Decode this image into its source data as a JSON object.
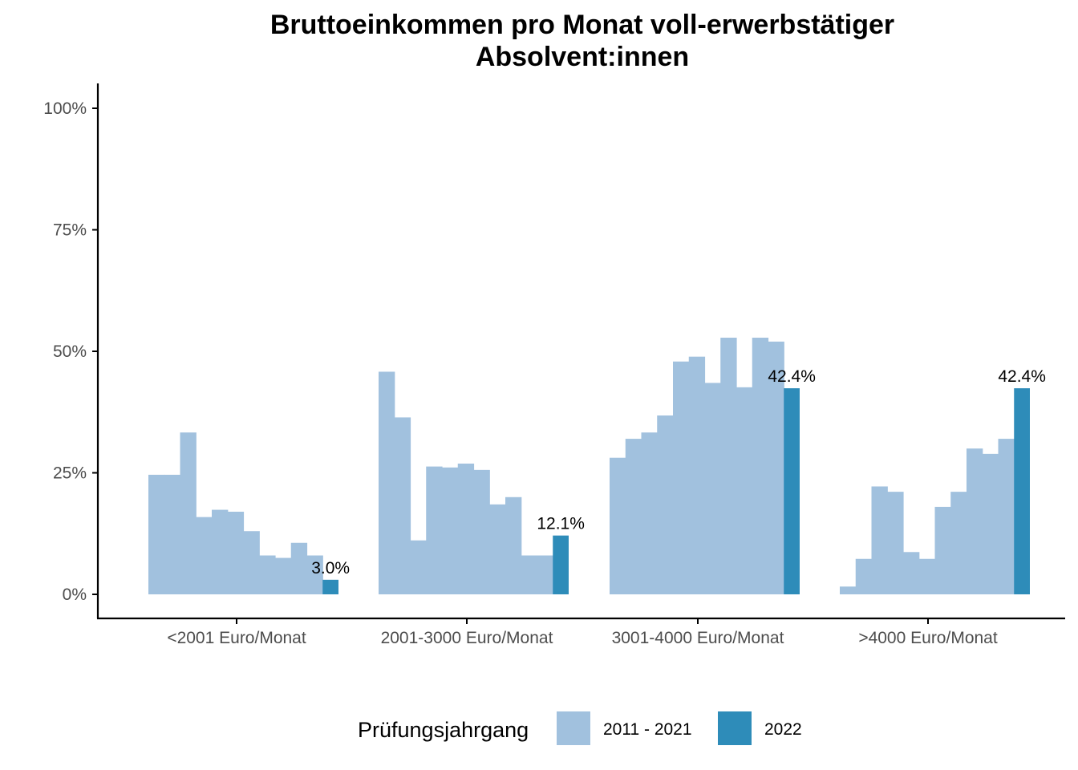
{
  "chart_data": {
    "type": "bar",
    "title_lines": [
      "Bruttoeinkommen pro Monat voll-erwerbstätiger",
      "Absolvent:innen"
    ],
    "xlabel": "",
    "ylabel": "",
    "ylim": [
      0,
      100
    ],
    "yticks": [
      "0%",
      "25%",
      "50%",
      "75%",
      "100%"
    ],
    "ytick_values": [
      0,
      25,
      50,
      75,
      100
    ],
    "categories": [
      "<2001 Euro/Monat",
      "2001-3000 Euro/Monat",
      "3001-4000 Euro/Monat",
      ">4000 Euro/Monat"
    ],
    "series": [
      {
        "name": "2011 - 2021",
        "color": "#a1c1de",
        "values_per_category": [
          [
            24.6,
            24.6,
            33.3,
            15.9,
            17.4,
            17.0,
            13.0,
            8.0,
            7.5,
            10.6,
            8.0
          ],
          [
            45.8,
            36.4,
            11.1,
            26.3,
            26.1,
            26.9,
            25.6,
            18.5,
            20.0,
            8.0,
            8.0
          ],
          [
            28.1,
            32.0,
            33.3,
            36.8,
            47.9,
            48.9,
            43.5,
            52.8,
            42.6,
            52.8,
            52.0
          ],
          [
            1.6,
            7.3,
            22.2,
            21.1,
            8.7,
            7.3,
            18.0,
            21.1,
            30.0,
            28.9,
            32.0
          ]
        ]
      },
      {
        "name": "2022",
        "color": "#2e8cb9",
        "values": [
          3.0,
          12.1,
          42.4,
          42.4
        ],
        "data_labels": [
          "3.0%",
          "12.1%",
          "42.4%",
          "42.4%"
        ]
      }
    ],
    "grid": false,
    "legend": {
      "title": "Prüfungsjahrgang",
      "placement": "bottom",
      "entries": [
        "2011 - 2021",
        "2022"
      ]
    }
  }
}
